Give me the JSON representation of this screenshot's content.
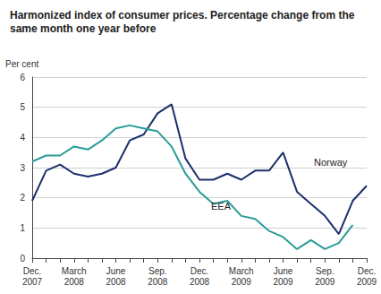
{
  "chart_data": {
    "type": "line",
    "title": "Harmonized index of consumer prices. Percentage change from the same month one year before",
    "y_label": "Per cent",
    "categories": [
      "Dec.\n2007",
      null,
      null,
      "March\n2008",
      null,
      null,
      "June\n2008",
      null,
      null,
      "Sep.\n2008",
      null,
      null,
      "Dec.\n2008",
      null,
      null,
      "March\n2009",
      null,
      null,
      "June\n2009",
      null,
      null,
      "Sep.\n2009",
      null,
      null,
      "Dec.\n2009"
    ],
    "series": [
      {
        "name": "Norway",
        "color": "#1b2f6b",
        "values": [
          1.9,
          2.9,
          3.1,
          2.8,
          2.7,
          2.8,
          3.0,
          3.9,
          4.1,
          4.8,
          5.1,
          3.3,
          2.6,
          2.6,
          2.8,
          2.6,
          2.9,
          2.9,
          3.5,
          2.2,
          1.8,
          1.4,
          0.8,
          1.9,
          2.4
        ]
      },
      {
        "name": "EEA",
        "color": "#2a9c98",
        "values": [
          3.2,
          3.4,
          3.4,
          3.7,
          3.6,
          3.9,
          4.3,
          4.4,
          4.3,
          4.2,
          3.7,
          2.8,
          2.2,
          1.8,
          1.9,
          1.4,
          1.3,
          0.9,
          0.7,
          0.3,
          0.6,
          0.3,
          0.5,
          1.1,
          null
        ]
      }
    ],
    "ylim": [
      0,
      6
    ],
    "yticks": [
      0,
      1,
      2,
      3,
      4,
      5,
      6
    ],
    "grid": true
  }
}
